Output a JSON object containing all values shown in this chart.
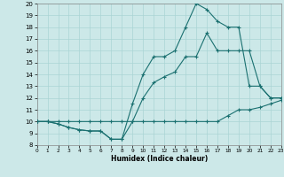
{
  "xlabel": "Humidex (Indice chaleur)",
  "background_color": "#cce8e8",
  "grid_color": "#aad4d4",
  "line_color": "#1a7070",
  "xlim": [
    0,
    23
  ],
  "ylim": [
    8,
    20
  ],
  "xtick_labels": [
    "0",
    "1",
    "2",
    "3",
    "4",
    "5",
    "6",
    "7",
    "8",
    "9",
    "10",
    "11",
    "12",
    "13",
    "14",
    "15",
    "16",
    "17",
    "18",
    "19",
    "20",
    "21",
    "22",
    "23"
  ],
  "xticks": [
    0,
    1,
    2,
    3,
    4,
    5,
    6,
    7,
    8,
    9,
    10,
    11,
    12,
    13,
    14,
    15,
    16,
    17,
    18,
    19,
    20,
    21,
    22,
    23
  ],
  "yticks": [
    8,
    9,
    10,
    11,
    12,
    13,
    14,
    15,
    16,
    17,
    18,
    19,
    20
  ],
  "line1_x": [
    0,
    1,
    2,
    3,
    4,
    5,
    6,
    7,
    8,
    9,
    10,
    11,
    12,
    13,
    14,
    15,
    16,
    17,
    18,
    19,
    20,
    21,
    22,
    23
  ],
  "line1_y": [
    10,
    10,
    10,
    10,
    10,
    10,
    10,
    10,
    10,
    10,
    10,
    10,
    10,
    10,
    10,
    10,
    10,
    10,
    10.5,
    11,
    11,
    11.2,
    11.5,
    11.8
  ],
  "line2_x": [
    0,
    1,
    2,
    3,
    4,
    5,
    6,
    7,
    8,
    9,
    10,
    11,
    12,
    13,
    14,
    15,
    16,
    17,
    18,
    19,
    20,
    21,
    22,
    23
  ],
  "line2_y": [
    10,
    10,
    9.8,
    9.5,
    9.3,
    9.2,
    9.2,
    8.5,
    8.5,
    10,
    12,
    13.3,
    13.8,
    14.2,
    15.5,
    15.5,
    17.5,
    16,
    16,
    16,
    16,
    13,
    12,
    12
  ],
  "line3_x": [
    0,
    1,
    2,
    3,
    4,
    5,
    6,
    7,
    8,
    9,
    10,
    11,
    12,
    13,
    14,
    15,
    16,
    17,
    18,
    19,
    20,
    21,
    22,
    23
  ],
  "line3_y": [
    10,
    10,
    9.8,
    9.5,
    9.3,
    9.2,
    9.2,
    8.5,
    8.5,
    11.5,
    14,
    15.5,
    15.5,
    16,
    18,
    20,
    19.5,
    18.5,
    18,
    18,
    13,
    13,
    12,
    12
  ]
}
